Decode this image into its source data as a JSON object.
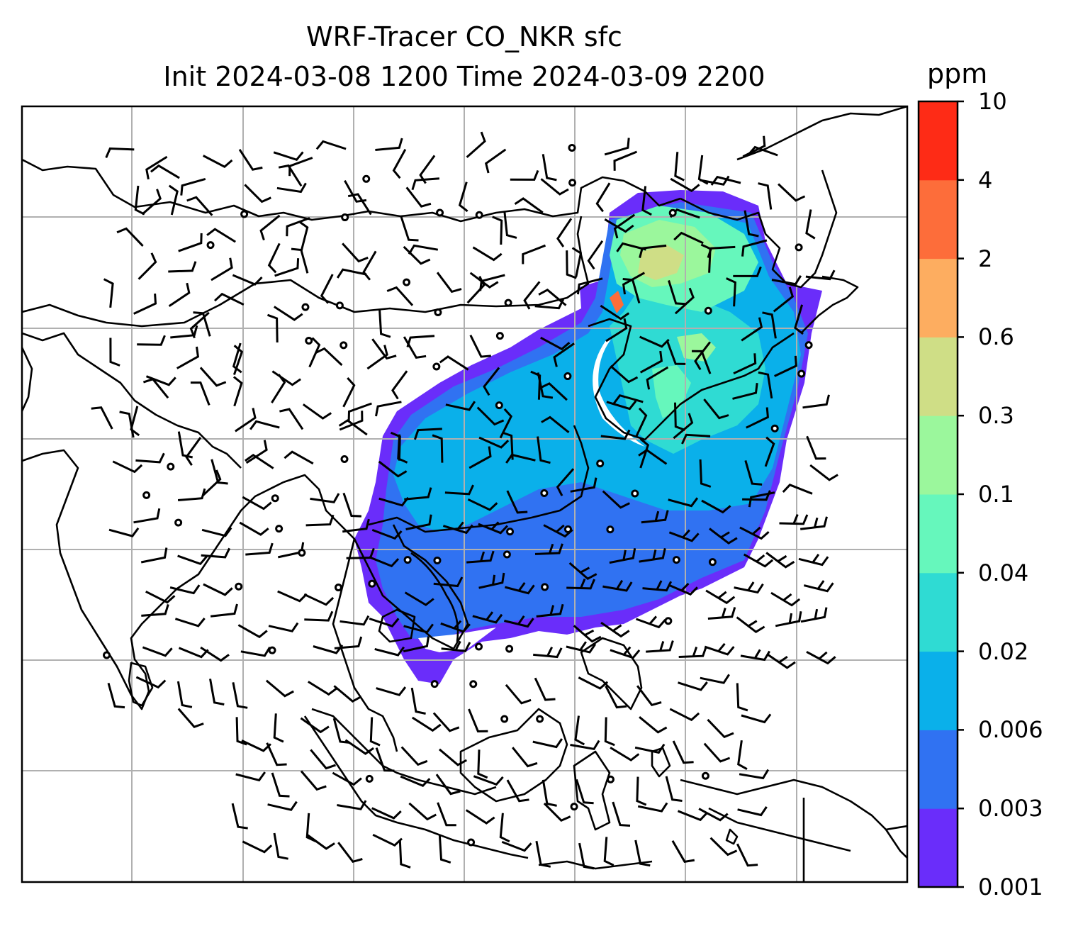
{
  "title": {
    "line1": "WRF-Tracer CO_NKR sfc",
    "line2": "Init 2024-03-08 1200 Time 2024-03-09 2200"
  },
  "colorbar": {
    "unit": "ppm",
    "levels": [
      "0.001",
      "0.003",
      "0.006",
      "0.02",
      "0.04",
      "0.1",
      "0.3",
      "0.6",
      "2",
      "4",
      "10"
    ],
    "colors": [
      "#6a2dfa",
      "#3072f2",
      "#0ab0ea",
      "#2fdbd3",
      "#66f7bc",
      "#9bf79c",
      "#cfde86",
      "#fdad60",
      "#fd6d3a",
      "#fe2b16"
    ]
  },
  "map": {
    "grid_color": "#b0b0b0",
    "coastline_color": "#000000",
    "overlay": "surface-wind-barbs"
  }
}
